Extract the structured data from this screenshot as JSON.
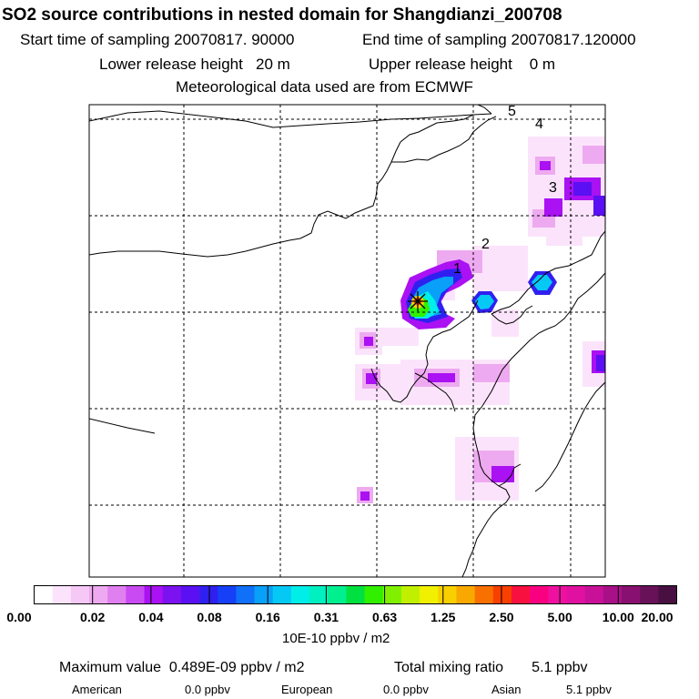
{
  "title": "SO2 source contributions in nested domain for Shangdianzi_200708",
  "sampling": {
    "start_label": "Start time of sampling",
    "start_value": "20070817. 90000",
    "end_label": "End time of sampling",
    "end_value": "20070817.120000"
  },
  "release": {
    "lower_label": "Lower release height",
    "lower_value": "20 m",
    "upper_label": "Upper release height",
    "upper_value": "0 m"
  },
  "meteo": "Meteorological data used are from ECMWF",
  "map": {
    "contour_labels": [
      "1",
      "2",
      "3",
      "4",
      "5"
    ],
    "receptor": "Shangdianzi"
  },
  "colorbar": {
    "tick_labels": [
      "0.00",
      "0.02",
      "0.04",
      "0.08",
      "0.16",
      "0.31",
      "0.63",
      "1.25",
      "2.50",
      "5.00",
      "10.00",
      "20.00"
    ],
    "colors": [
      "#ffffff",
      "#fbe4fb",
      "#f5c8f6",
      "#eeaaf0",
      "#e07ff0",
      "#c94af2",
      "#aa11f3",
      "#7d12f0",
      "#5a10f2",
      "#3020f0",
      "#1540f7",
      "#1070f8",
      "#08a0f8",
      "#06c8f5",
      "#00eee8",
      "#00f0c0",
      "#00f090",
      "#00e040",
      "#30f000",
      "#80f000",
      "#c0f000",
      "#f0f000",
      "#f8d000",
      "#f8a800",
      "#f87000",
      "#f84000",
      "#f81040",
      "#f80080",
      "#f010a0",
      "#e010a0",
      "#c81098",
      "#a81088",
      "#881070",
      "#681058",
      "#481040"
    ],
    "units": "10E-10 ppbv / m2"
  },
  "summary": {
    "max_label": "Maximum value",
    "max_value": "0.489E-09 ppbv / m2",
    "total_label": "Total mixing ratio",
    "total_value": "5.1 ppbv",
    "american_label": "American",
    "american_value": "0.0 ppbv",
    "european_label": "European",
    "european_value": "0.0 ppbv",
    "asian_label": "Asian",
    "asian_value": "5.1 ppbv"
  }
}
